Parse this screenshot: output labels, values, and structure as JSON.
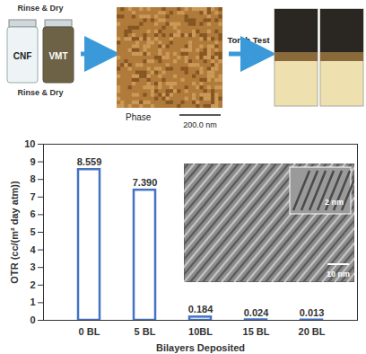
{
  "chart_data": {
    "type": "bar",
    "categories": [
      "0 BL",
      "5 BL",
      "10BL",
      "15 BL",
      "20 BL"
    ],
    "values": [
      8.559,
      7.39,
      0.184,
      0.024,
      0.013
    ],
    "value_labels": [
      "8.559",
      "7.390",
      "0.184",
      "0.024",
      "0.013"
    ],
    "data_labels": true,
    "color": "#4472c4",
    "y_label": "OTR (cc/(m² day atm))",
    "x_label": "Bilayers Deposited",
    "ylim": [
      0,
      10
    ],
    "yticks": [
      0,
      1,
      2,
      3,
      4,
      5,
      6,
      7,
      8,
      9,
      10
    ],
    "grid": false
  },
  "graphics": {
    "vials": {
      "labels": [
        "CNF",
        "VMT"
      ],
      "caption_top": "Rinse & Dry",
      "caption_bottom": "Rinse & Dry"
    },
    "afm": {
      "label": "Phase",
      "scale_bar": "200.0 nm"
    },
    "arrow": {
      "label": "Torch Test"
    },
    "tem_inset": {
      "scale_bar": "10 nm",
      "zoom_scale_bar": "2 nm"
    }
  }
}
